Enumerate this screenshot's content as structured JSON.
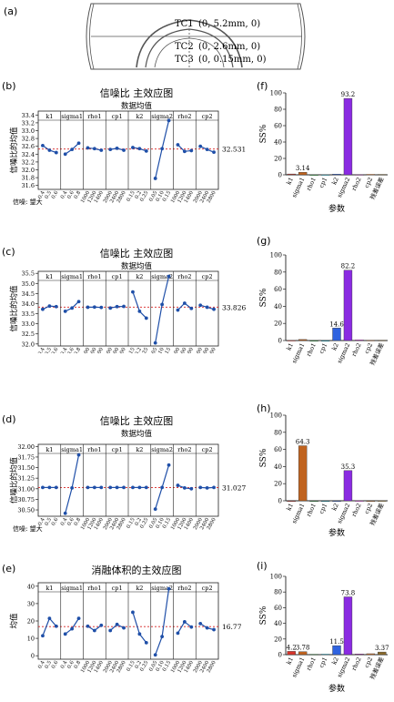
{
  "panel_labels": [
    "(a)",
    "(b)",
    "(c)",
    "(d)",
    "(e)",
    "(f)",
    "(g)",
    "(h)",
    "(i)"
  ],
  "schematic": {
    "labels": [
      "TC1",
      "TC2",
      "TC3"
    ],
    "coords": [
      "(0, 5.2mm, 0)",
      "(0, 2.6mm, 0)",
      "(0, 0.15mm, 0)"
    ]
  },
  "factor_labels": [
    "k1",
    "sigma1",
    "rho1",
    "cp1",
    "k2",
    "sigma2",
    "rho2",
    "cp2"
  ],
  "chart_data": [
    {
      "id": "b",
      "type": "line",
      "title": "信噪比 主效应图",
      "subtitle": "数据均值",
      "ylabel": "信噪比的均值",
      "footnote": "信噪: 望大",
      "mean_line": 32.531,
      "mean_label": "32.531",
      "ylim": [
        31.5,
        33.5
      ],
      "yticks": [
        "31.6",
        "31.8",
        "32.0",
        "32.2",
        "32.4",
        "32.6",
        "32.8",
        "33.0",
        "33.2",
        "33.4"
      ],
      "ytick_values": [
        31.6,
        31.8,
        32.0,
        32.2,
        32.4,
        32.6,
        32.8,
        33.0,
        33.2,
        33.4
      ],
      "groups": [
        {
          "factor": "k1",
          "levels": [
            "0.4",
            "0.5",
            "0.6"
          ],
          "values": [
            32.62,
            32.5,
            32.44
          ]
        },
        {
          "factor": "sigma1",
          "levels": [
            "0.4",
            "0.6",
            "0.8"
          ],
          "values": [
            32.4,
            32.52,
            32.68
          ]
        },
        {
          "factor": "rho1",
          "levels": [
            "1000",
            "1200",
            "1400"
          ],
          "values": [
            32.56,
            32.54,
            32.5
          ]
        },
        {
          "factor": "cp1",
          "levels": [
            "2000",
            "2400",
            "2800"
          ],
          "values": [
            32.52,
            32.55,
            32.5
          ]
        },
        {
          "factor": "k2",
          "levels": [
            "0.15",
            "0.2",
            "0.25"
          ],
          "values": [
            32.57,
            32.54,
            32.48
          ]
        },
        {
          "factor": "sigma2",
          "levels": [
            "0.05",
            "0.10",
            "0.15"
          ],
          "values": [
            31.78,
            32.54,
            33.26
          ]
        },
        {
          "factor": "rho2",
          "levels": [
            "1000",
            "1200",
            "1400"
          ],
          "values": [
            32.64,
            32.47,
            32.49
          ]
        },
        {
          "factor": "cp2",
          "levels": [
            "2000",
            "2400",
            "2800"
          ],
          "values": [
            32.6,
            32.52,
            32.45
          ]
        }
      ]
    },
    {
      "id": "c",
      "type": "line",
      "title": "信噪比 主效应图",
      "subtitle": "数据均值",
      "ylabel": "信噪比的均值",
      "footnote": "",
      "mean_line": 33.826,
      "mean_label": "33.826",
      "ylim": [
        31.9,
        35.6
      ],
      "yticks": [
        "32.0",
        "32.5",
        "33.0",
        "33.5",
        "34.0",
        "34.5",
        "35.0",
        "35.5"
      ],
      "ytick_values": [
        32.0,
        32.5,
        33.0,
        33.5,
        34.0,
        34.5,
        35.0,
        35.5
      ],
      "groups": [
        {
          "factor": "k1",
          "levels": [
            "0.4",
            "0.5",
            "0.6"
          ],
          "values": [
            33.72,
            33.88,
            33.85
          ]
        },
        {
          "factor": "sigma1",
          "levels": [
            "0.4",
            "0.6",
            "0.8"
          ],
          "values": [
            33.62,
            33.78,
            34.1
          ]
        },
        {
          "factor": "rho1",
          "levels": [
            "1000",
            "1200",
            "1400"
          ],
          "values": [
            33.82,
            33.83,
            33.81
          ]
        },
        {
          "factor": "cp1",
          "levels": [
            "2000",
            "2400",
            "2800"
          ],
          "values": [
            33.78,
            33.85,
            33.86
          ]
        },
        {
          "factor": "k2",
          "levels": [
            "0.15",
            "0.2",
            "0.25"
          ],
          "values": [
            34.58,
            33.62,
            33.28
          ]
        },
        {
          "factor": "sigma2",
          "levels": [
            "0.05",
            "0.10",
            "0.15"
          ],
          "values": [
            32.05,
            33.96,
            35.35
          ]
        },
        {
          "factor": "rho2",
          "levels": [
            "1000",
            "1200",
            "1400"
          ],
          "values": [
            33.68,
            34.02,
            33.76
          ]
        },
        {
          "factor": "cp2",
          "levels": [
            "2000",
            "2400",
            "2800"
          ],
          "values": [
            33.92,
            33.82,
            33.72
          ]
        }
      ]
    },
    {
      "id": "d",
      "type": "line",
      "title": "信噪比 主效应图",
      "subtitle": "数据均值",
      "ylabel": "信噪比的均值",
      "footnote": "信噪: 望大",
      "mean_line": 31.027,
      "mean_label": "31.027",
      "ylim": [
        30.35,
        32.05
      ],
      "yticks": [
        "30.50",
        "30.75",
        "31.00",
        "31.25",
        "31.50",
        "31.75",
        "32.00"
      ],
      "ytick_values": [
        30.5,
        30.75,
        31.0,
        31.25,
        31.5,
        31.75,
        32.0
      ],
      "groups": [
        {
          "factor": "k1",
          "levels": [
            "0.4",
            "0.5",
            "0.6"
          ],
          "values": [
            31.03,
            31.03,
            31.03
          ]
        },
        {
          "factor": "sigma1",
          "levels": [
            "0.4",
            "0.6",
            "0.8"
          ],
          "values": [
            30.42,
            31.02,
            31.8
          ]
        },
        {
          "factor": "rho1",
          "levels": [
            "1000",
            "1200",
            "1400"
          ],
          "values": [
            31.03,
            31.03,
            31.03
          ]
        },
        {
          "factor": "cp1",
          "levels": [
            "2000",
            "2400",
            "2800"
          ],
          "values": [
            31.03,
            31.03,
            31.03
          ]
        },
        {
          "factor": "k2",
          "levels": [
            "0.15",
            "0.2",
            "0.25"
          ],
          "values": [
            31.03,
            31.03,
            31.03
          ]
        },
        {
          "factor": "sigma2",
          "levels": [
            "0.05",
            "0.10",
            "0.15"
          ],
          "values": [
            30.52,
            31.03,
            31.56
          ]
        },
        {
          "factor": "rho2",
          "levels": [
            "1000",
            "1200",
            "1400"
          ],
          "values": [
            31.08,
            31.02,
            31.0
          ]
        },
        {
          "factor": "cp2",
          "levels": [
            "2000",
            "2400",
            "2800"
          ],
          "values": [
            31.03,
            31.02,
            31.03
          ]
        }
      ]
    },
    {
      "id": "e",
      "type": "line",
      "title": "消融体积的主效应图",
      "subtitle": "",
      "ylabel": "均值",
      "footnote": "",
      "mean_line": 16.77,
      "mean_label": "16.77",
      "ylim": [
        -2,
        42
      ],
      "yticks": [
        "0",
        "10",
        "20",
        "30",
        "40"
      ],
      "ytick_values": [
        0,
        10,
        20,
        30,
        40
      ],
      "groups": [
        {
          "factor": "k1",
          "levels": [
            "0.4",
            "0.5",
            "0.6"
          ],
          "values": [
            11.5,
            21.5,
            17.0
          ]
        },
        {
          "factor": "sigma1",
          "levels": [
            "0.4",
            "0.6",
            "0.8"
          ],
          "values": [
            12.5,
            15.5,
            21.5
          ]
        },
        {
          "factor": "rho1",
          "levels": [
            "1000",
            "1200",
            "1400"
          ],
          "values": [
            17.0,
            14.5,
            17.5
          ]
        },
        {
          "factor": "cp1",
          "levels": [
            "2000",
            "2400",
            "2800"
          ],
          "values": [
            14.5,
            18.0,
            16.0
          ]
        },
        {
          "factor": "k2",
          "levels": [
            "0.15",
            "0.2",
            "0.25"
          ],
          "values": [
            25.0,
            12.5,
            7.5
          ]
        },
        {
          "factor": "sigma2",
          "levels": [
            "0.05",
            "0.10",
            "0.15"
          ],
          "values": [
            0.5,
            11.0,
            38.5
          ]
        },
        {
          "factor": "rho2",
          "levels": [
            "1000",
            "1200",
            "1400"
          ],
          "values": [
            13.0,
            19.5,
            16.5
          ]
        },
        {
          "factor": "cp2",
          "levels": [
            "2000",
            "2400",
            "2800"
          ],
          "values": [
            18.5,
            16.0,
            15.0
          ]
        }
      ]
    },
    {
      "id": "f",
      "type": "bar",
      "ylabel": "SS%",
      "xlabel": "参数",
      "ylim": [
        0,
        100
      ],
      "yticks": [
        "0",
        "20",
        "40",
        "60",
        "80",
        "100"
      ],
      "ytick_values": [
        0,
        20,
        40,
        60,
        80,
        100
      ],
      "categories": [
        "k1",
        "sigma1",
        "rho1",
        "cp1",
        "k2",
        "sigma2",
        "rho2",
        "cp2",
        "残差误差"
      ],
      "values": [
        1.0,
        3.14,
        0.2,
        0.3,
        0.8,
        93.2,
        0.4,
        0.6,
        0.5
      ],
      "labels": [
        "",
        "3.14",
        "",
        "",
        "",
        "93.2",
        "",
        "",
        ""
      ],
      "colors": [
        "#d9342b",
        "#c0631f",
        "#2b9c3c",
        "#0aa9c4",
        "#2f63e0",
        "#8a2be2",
        "#d33bd0",
        "#e07a2f",
        "#8b6a2b"
      ]
    },
    {
      "id": "g",
      "type": "bar",
      "ylabel": "SS%",
      "xlabel": "",
      "ylim": [
        0,
        100
      ],
      "yticks": [
        "0",
        "20",
        "40",
        "60",
        "80",
        "100"
      ],
      "ytick_values": [
        0,
        20,
        40,
        60,
        80,
        100
      ],
      "categories": [
        "k1",
        "sigma1",
        "rho1",
        "cp1",
        "k2",
        "sigma2",
        "rho2",
        "cp2",
        "残差误差"
      ],
      "values": [
        0.3,
        1.2,
        0.1,
        0.1,
        14.6,
        82.2,
        0.7,
        0.4,
        0.4
      ],
      "labels": [
        "",
        "",
        "",
        "",
        "14.6",
        "82.2",
        "",
        "",
        ""
      ],
      "colors": [
        "#d9342b",
        "#c0631f",
        "#2b9c3c",
        "#0aa9c4",
        "#2f63e0",
        "#8a2be2",
        "#d33bd0",
        "#e07a2f",
        "#8b6a2b"
      ]
    },
    {
      "id": "h",
      "type": "bar",
      "ylabel": "SS%",
      "xlabel": "参数",
      "ylim": [
        0,
        100
      ],
      "yticks": [
        "0",
        "20",
        "40",
        "60",
        "80",
        "100"
      ],
      "ytick_values": [
        0,
        20,
        40,
        60,
        80,
        100
      ],
      "categories": [
        "k1",
        "sigma1",
        "rho1",
        "cp1",
        "k2",
        "sigma2",
        "rho2",
        "cp2",
        "残差误差"
      ],
      "values": [
        0.0,
        64.3,
        0.0,
        0.0,
        0.0,
        35.3,
        0.2,
        0.0,
        0.2
      ],
      "labels": [
        "",
        "64.3",
        "",
        "",
        "",
        "35.3",
        "",
        "",
        ""
      ],
      "colors": [
        "#d9342b",
        "#c0631f",
        "#2b9c3c",
        "#0aa9c4",
        "#2f63e0",
        "#8a2be2",
        "#d33bd0",
        "#e07a2f",
        "#8b6a2b"
      ]
    },
    {
      "id": "i",
      "type": "bar",
      "ylabel": "SS%",
      "xlabel": "参数",
      "ylim": [
        0,
        100
      ],
      "yticks": [
        "0",
        "20",
        "40",
        "60",
        "80",
        "100"
      ],
      "ytick_values": [
        0,
        20,
        40,
        60,
        80,
        100
      ],
      "categories": [
        "k1",
        "sigma1",
        "rho1",
        "cp1",
        "k2",
        "sigma2",
        "rho2",
        "cp2",
        "残差误差"
      ],
      "values": [
        4.2,
        3.78,
        0.5,
        0.6,
        11.5,
        73.8,
        0.9,
        1.2,
        3.37
      ],
      "labels": [
        "4.2",
        "3.78",
        "",
        "",
        "11.5",
        "73.8",
        "",
        "",
        "3.37"
      ],
      "colors": [
        "#d9342b",
        "#c0631f",
        "#2b9c3c",
        "#0aa9c4",
        "#2f63e0",
        "#8a2be2",
        "#d33bd0",
        "#e07a2f",
        "#8b6a2b"
      ]
    }
  ]
}
